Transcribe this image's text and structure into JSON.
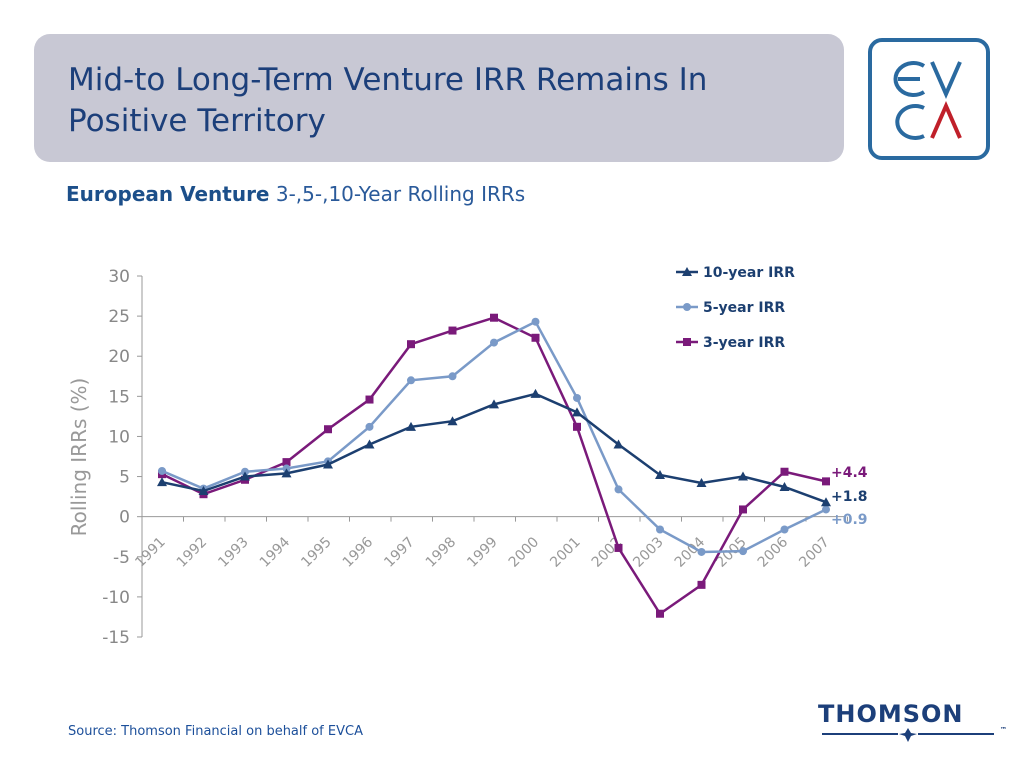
{
  "header": {
    "title": "Mid-to Long-Term Venture IRR Remains In Positive Territory",
    "subtitle_bold": "European Venture",
    "subtitle_rest": " 3-,5-,10-Year Rolling IRRs"
  },
  "logo": {
    "top": "EV",
    "bottom": "CA",
    "colors": {
      "blue": "#2a6aa0",
      "red": "#c0202a"
    }
  },
  "source": "Source: Thomson Financial on behalf of EVCA",
  "thomson": {
    "word": "THOMSON",
    "tm": "™"
  },
  "chart_data": {
    "type": "line",
    "x": [
      "1991",
      "1992",
      "1993",
      "1994",
      "1995",
      "1996",
      "1997",
      "1998",
      "1999",
      "2000",
      "2001",
      "2002",
      "2003",
      "2004",
      "2005",
      "2006",
      "2007"
    ],
    "ylabel": "Rolling IRRs (%)",
    "ylim": [
      -15,
      30
    ],
    "yticks": [
      -15,
      -10,
      -5,
      0,
      5,
      10,
      15,
      20,
      25,
      30
    ],
    "grid": false,
    "legend_position": "top-right",
    "series": [
      {
        "name": "10-year IRR",
        "color": "#1c3f70",
        "marker": "triangle",
        "values": [
          4.3,
          3.2,
          5.0,
          5.4,
          6.5,
          9.0,
          11.2,
          11.9,
          14.0,
          15.3,
          13.0,
          9.0,
          5.2,
          4.2,
          5.0,
          3.7,
          1.8
        ]
      },
      {
        "name": "5-year IRR",
        "color": "#7a9ac8",
        "marker": "circle",
        "values": [
          5.7,
          3.5,
          5.6,
          6.0,
          6.9,
          11.2,
          17.0,
          17.5,
          21.7,
          24.3,
          14.8,
          3.4,
          -1.6,
          -4.4,
          -4.3,
          -1.6,
          0.9
        ]
      },
      {
        "name": "3-year IRR",
        "color": "#7a1a7a",
        "marker": "square",
        "values": [
          5.3,
          2.8,
          4.6,
          6.8,
          10.9,
          14.6,
          21.5,
          23.2,
          24.8,
          22.3,
          11.2,
          -3.9,
          -12.1,
          -8.5,
          0.9,
          5.6,
          4.4
        ]
      }
    ],
    "annotations": [
      {
        "text": "+4.4",
        "color": "#7a1a7a"
      },
      {
        "text": "+1.8",
        "color": "#1c3f70"
      },
      {
        "text": "+0.9",
        "color": "#7a9ac8"
      }
    ]
  }
}
